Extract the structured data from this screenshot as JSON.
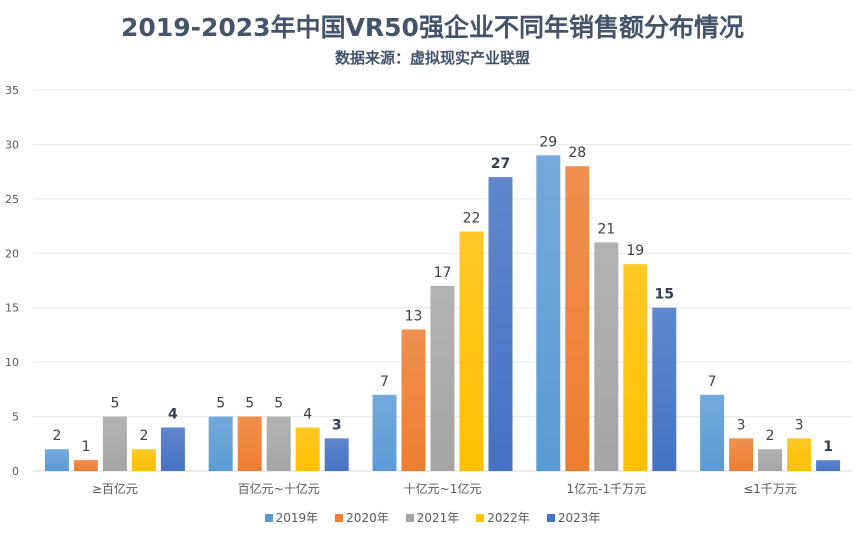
{
  "chart_data": {
    "type": "bar",
    "title": "2019-2023年中国VR50强企业不同年销售额分布情况",
    "subtitle": "数据来源：虚拟现实产业联盟",
    "xlabel": "",
    "ylabel": "",
    "ylim": [
      0,
      35
    ],
    "yticks": [
      0,
      5,
      10,
      15,
      20,
      25,
      30,
      35
    ],
    "grid": true,
    "legend_position": "bottom",
    "categories": [
      "≥百亿元",
      "百亿元~十亿元",
      "十亿元~1亿元",
      "1亿元-1千万元",
      "≤1千万元"
    ],
    "series": [
      {
        "name": "2019年",
        "color": "#5b9bd5",
        "values": [
          2,
          5,
          7,
          29,
          7
        ],
        "bold_labels": false
      },
      {
        "name": "2020年",
        "color": "#ed7d31",
        "values": [
          1,
          5,
          13,
          28,
          3
        ],
        "bold_labels": false
      },
      {
        "name": "2021年",
        "color": "#a5a5a5",
        "values": [
          5,
          5,
          17,
          21,
          2
        ],
        "bold_labels": false
      },
      {
        "name": "2022年",
        "color": "#ffc000",
        "values": [
          2,
          4,
          22,
          19,
          3
        ],
        "bold_labels": false
      },
      {
        "name": "2023年",
        "color": "#4472c4",
        "values": [
          4,
          3,
          27,
          15,
          1
        ],
        "bold_labels": true
      }
    ]
  }
}
